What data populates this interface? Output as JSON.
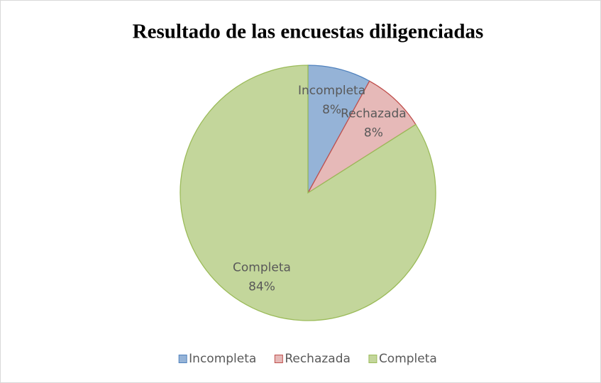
{
  "chart_data": {
    "type": "pie",
    "title": "Resultado de las encuestas diligenciadas",
    "categories": [
      "Incompleta",
      "Rechazada",
      "Completa"
    ],
    "values": [
      8,
      8,
      84
    ],
    "value_labels": [
      "8%",
      "8%",
      "84%"
    ],
    "colors": [
      "#95b3d7",
      "#e6b9b8",
      "#c3d69b"
    ],
    "edge_colors": [
      "#4f81bd",
      "#c0504d",
      "#9bbb59"
    ],
    "legend": "bottom"
  }
}
